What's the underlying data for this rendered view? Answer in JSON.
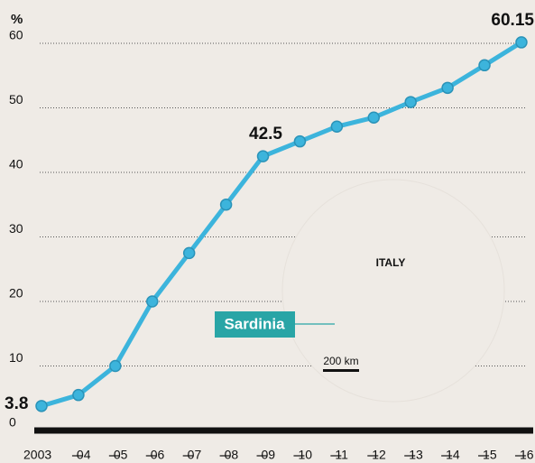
{
  "chart_data": {
    "type": "line",
    "y_label": "%",
    "categories": [
      "2003",
      "04",
      "05",
      "06",
      "07",
      "08",
      "09",
      "10",
      "11",
      "12",
      "13",
      "14",
      "15",
      "16"
    ],
    "series": [
      {
        "name": "Sardinia",
        "color": "#3cb4dc",
        "values": [
          3.8,
          5.5,
          10,
          20,
          27.5,
          35,
          42.5,
          44.8,
          47.1,
          48.5,
          50.9,
          53.1,
          56.6,
          60.15
        ],
        "value_labels": [
          "3.8",
          null,
          null,
          null,
          null,
          null,
          "42.5",
          null,
          null,
          null,
          null,
          null,
          null,
          "60.15"
        ]
      }
    ],
    "ylim": [
      0,
      62
    ],
    "yticks": [
      0,
      10,
      20,
      30,
      40,
      50,
      60
    ],
    "grid": true,
    "annotations": {
      "country": "ITALY",
      "scale": "200 km"
    }
  }
}
